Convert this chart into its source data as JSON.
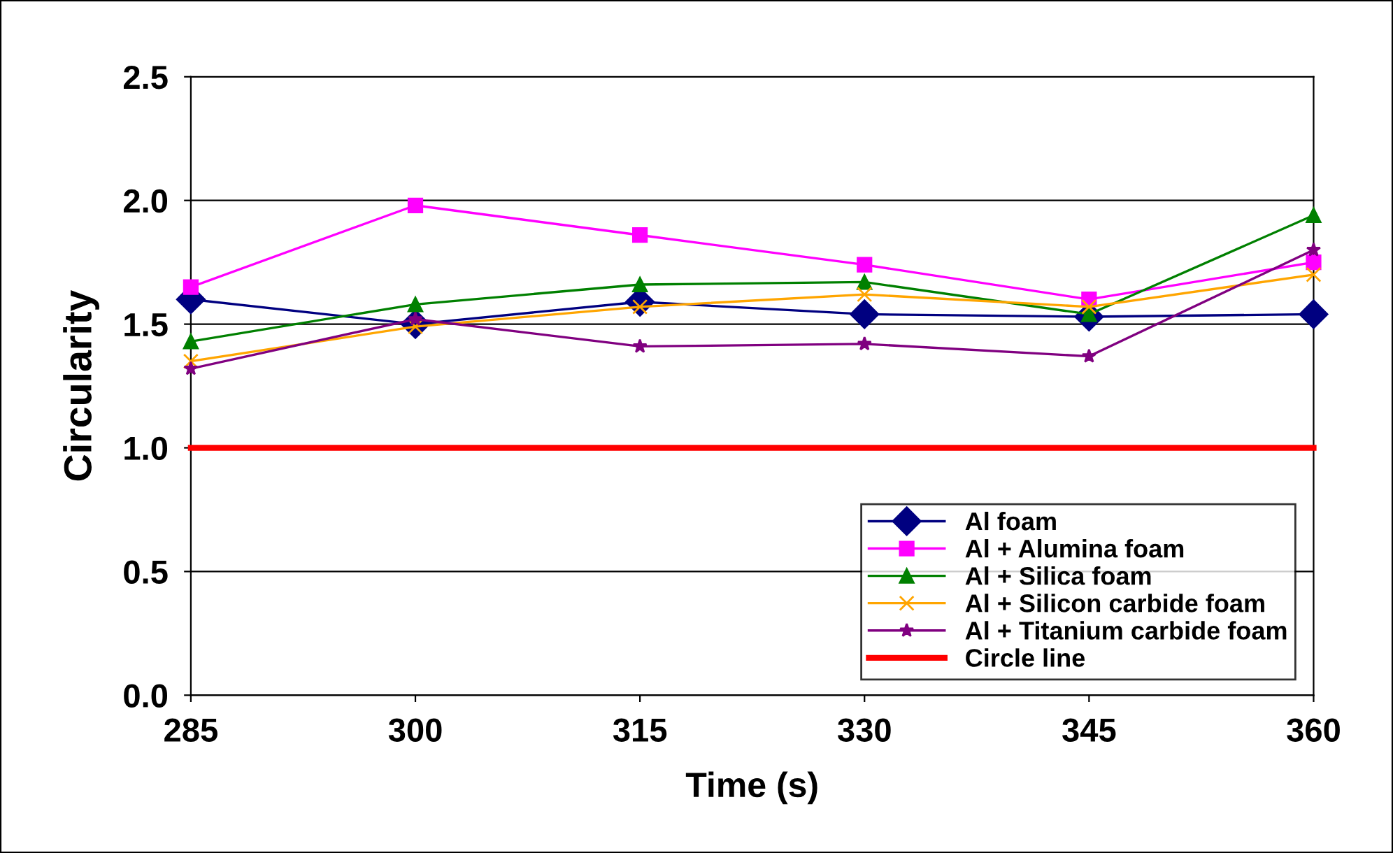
{
  "chart_data": {
    "type": "line",
    "xlabel": "Time (s)",
    "ylabel": "Circularity",
    "x": [
      285,
      300,
      315,
      330,
      345,
      360
    ],
    "series": [
      {
        "name": "Al foam",
        "color": "#000080",
        "marker": "diamond",
        "values": [
          1.6,
          1.5,
          1.59,
          1.54,
          1.53,
          1.54
        ]
      },
      {
        "name": "Al + Alumina foam",
        "color": "#ff00ff",
        "marker": "square",
        "values": [
          1.65,
          1.98,
          1.86,
          1.74,
          1.6,
          1.75
        ]
      },
      {
        "name": "Al + Silica foam",
        "color": "#008000",
        "marker": "triangle",
        "values": [
          1.43,
          1.58,
          1.66,
          1.67,
          1.54,
          1.94
        ]
      },
      {
        "name": "Al + Silicon carbide foam",
        "color": "#ffa500",
        "marker": "cross",
        "values": [
          1.35,
          1.49,
          1.57,
          1.62,
          1.57,
          1.7
        ]
      },
      {
        "name": "Al + Titanium carbide foam",
        "color": "#800080",
        "marker": "star",
        "values": [
          1.32,
          1.52,
          1.41,
          1.42,
          1.37,
          1.8
        ]
      },
      {
        "name": "Circle line",
        "color": "#ff0000",
        "marker": "none",
        "values": [
          1.0,
          1.0,
          1.0,
          1.0,
          1.0,
          1.0
        ]
      }
    ],
    "xlim": [
      285,
      360
    ],
    "xticks": [
      285,
      300,
      315,
      330,
      345,
      360
    ],
    "ylim": [
      0,
      2.5
    ],
    "yticks": [
      {
        "value": 0,
        "label": "0.0"
      },
      {
        "value": 0.5,
        "label": "0.5"
      },
      {
        "value": 1,
        "label": "1.0"
      },
      {
        "value": 1.5,
        "label": "1.5"
      },
      {
        "value": 2,
        "label": "2.0"
      },
      {
        "value": 2.5,
        "label": "2.5"
      }
    ],
    "grid": "y",
    "legend": "bottom right"
  }
}
